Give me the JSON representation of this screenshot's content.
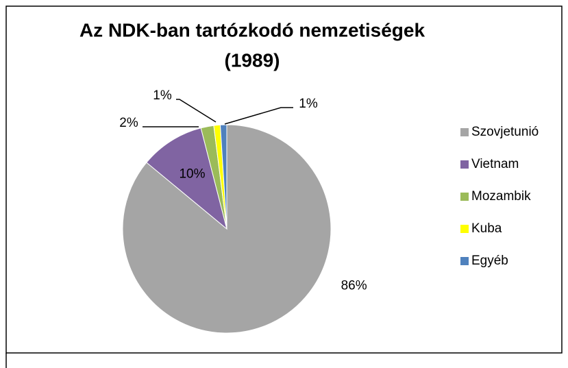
{
  "chart_data": {
    "type": "pie",
    "title": [
      "Az NDK-ban tartózkodó nemzetiségek",
      "(1989)"
    ],
    "categories": [
      "Szovjetunió",
      "Vietnam",
      "Mozambik",
      "Kuba",
      "Egyéb"
    ],
    "values": [
      86,
      10,
      2,
      1,
      1
    ],
    "value_labels": [
      "86%",
      "10%",
      "2%",
      "1%",
      "1%"
    ],
    "colors": [
      "#a5a5a5",
      "#8064a2",
      "#9bbb59",
      "#ffff00",
      "#4f81bd"
    ],
    "legend": "right"
  }
}
